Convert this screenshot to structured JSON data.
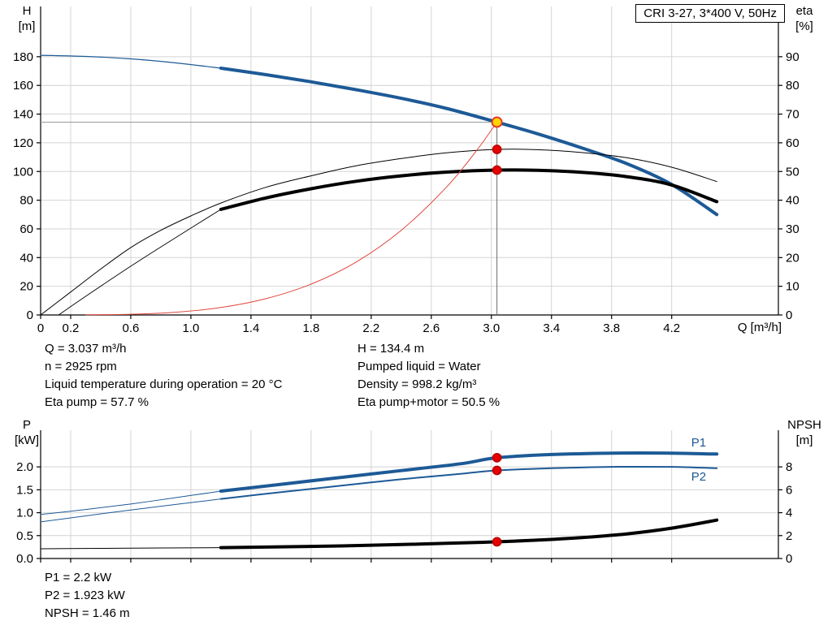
{
  "title_box": "CRI 3-27, 3*400 V, 50Hz",
  "colors": {
    "curve_blue": "#1d5a96",
    "curve_black": "#000000",
    "system_red": "#e0463c",
    "duty_dot_red": "#e60000",
    "duty_point_yellow": "#ffd400",
    "grid_gray": "#d4d4d4"
  },
  "info": {
    "left": [
      "Q = 3.037 m³/h",
      "n = 2925 rpm",
      "Liquid temperature during operation = 20 °C",
      "Eta pump = 57.7 %"
    ],
    "right": [
      "H = 134.4 m",
      "Pumped liquid = Water",
      "Density = 998.2 kg/m³",
      "Eta pump+motor = 50.5 %"
    ],
    "power": [
      "P1 = 2.2 kW",
      "P2 = 1.923 kW",
      "NPSH = 1.46 m"
    ]
  },
  "chart_data": [
    {
      "id": "qh-eta-chart",
      "type": "line",
      "title": "CRI 3-27, 3*400 V, 50Hz",
      "x_axis": {
        "label": "Q [m³/h]",
        "min": 0,
        "max": 4.91,
        "tick_values": [
          0,
          0.2,
          0.6,
          1.0,
          1.4,
          1.8,
          2.2,
          2.6,
          3.0,
          3.4,
          3.8,
          4.2
        ],
        "tick_labels": [
          "0",
          "0.2",
          "0.6",
          "1.0",
          "1.4",
          "1.8",
          "2.2",
          "2.6",
          "3.0",
          "3.4",
          "3.8",
          "4.2"
        ]
      },
      "y_left": {
        "label_lines": [
          "H",
          "[m]"
        ],
        "min": 0,
        "max": 215,
        "tick_values": [
          0,
          20,
          40,
          60,
          80,
          100,
          120,
          140,
          160,
          180
        ],
        "tick_labels": [
          "0",
          "20",
          "40",
          "60",
          "80",
          "100",
          "120",
          "140",
          "160",
          "180"
        ]
      },
      "y_right": {
        "label_lines": [
          "eta",
          "[%]"
        ],
        "min": 0,
        "max": 107.5,
        "tick_values": [
          0,
          10,
          20,
          30,
          40,
          50,
          60,
          70,
          80,
          90
        ],
        "tick_labels": [
          "0",
          "10",
          "20",
          "30",
          "40",
          "50",
          "60",
          "70",
          "80",
          "90"
        ]
      },
      "series": [
        {
          "name": "qh-curve-thin",
          "axis": "left",
          "color": "#1d5a96",
          "width": 1.2,
          "points": [
            [
              0,
              181
            ],
            [
              0.3,
              180.2
            ],
            [
              0.6,
              178.5
            ],
            [
              0.9,
              175.7
            ],
            [
              1.2,
              172
            ]
          ]
        },
        {
          "name": "qh-curve",
          "axis": "left",
          "color": "#1d5a96",
          "width": 4,
          "points": [
            [
              1.2,
              172
            ],
            [
              1.5,
              167.5
            ],
            [
              1.8,
              162.5
            ],
            [
              2.1,
              157
            ],
            [
              2.4,
              151
            ],
            [
              2.7,
              144
            ],
            [
              3.037,
              134.4
            ],
            [
              3.3,
              126.5
            ],
            [
              3.6,
              116.5
            ],
            [
              3.9,
              105.5
            ],
            [
              4.2,
              91
            ],
            [
              4.5,
              70
            ]
          ]
        },
        {
          "name": "eta-pump-curve",
          "axis": "right",
          "color": "#000000",
          "width": 1,
          "points": [
            [
              0,
              0
            ],
            [
              0.2,
              8
            ],
            [
              0.4,
              16
            ],
            [
              0.6,
              23.5
            ],
            [
              0.8,
              29.5
            ],
            [
              1.0,
              34.5
            ],
            [
              1.2,
              39
            ],
            [
              1.5,
              44.5
            ],
            [
              1.8,
              48.5
            ],
            [
              2.1,
              52
            ],
            [
              2.4,
              54.5
            ],
            [
              2.7,
              56.5
            ],
            [
              3.037,
              57.7
            ],
            [
              3.3,
              57.6
            ],
            [
              3.6,
              56.6
            ],
            [
              3.9,
              54.8
            ],
            [
              4.2,
              51.5
            ],
            [
              4.5,
              46.5
            ]
          ]
        },
        {
          "name": "eta-total-curve-thin",
          "axis": "right",
          "color": "#000000",
          "width": 0.9,
          "points": [
            [
              0.12,
              0
            ],
            [
              0.3,
              6.5
            ],
            [
              0.6,
              17
            ],
            [
              0.9,
              27
            ],
            [
              1.2,
              36.8
            ]
          ]
        },
        {
          "name": "eta-total-curve",
          "axis": "right",
          "color": "#000000",
          "width": 4,
          "points": [
            [
              1.2,
              36.8
            ],
            [
              1.5,
              40.8
            ],
            [
              1.8,
              44
            ],
            [
              2.1,
              46.6
            ],
            [
              2.4,
              48.5
            ],
            [
              2.7,
              49.8
            ],
            [
              3.037,
              50.5
            ],
            [
              3.3,
              50.4
            ],
            [
              3.6,
              49.7
            ],
            [
              3.9,
              48.2
            ],
            [
              4.2,
              45.3
            ],
            [
              4.5,
              39.5
            ]
          ]
        },
        {
          "name": "duty-system-curve",
          "axis": "left",
          "color": "#e0463c",
          "width": 1,
          "points": [
            [
              0.3,
              0.1
            ],
            [
              0.6,
              0.5
            ],
            [
              0.9,
              1.9
            ],
            [
              1.2,
              5.2
            ],
            [
              1.5,
              11.4
            ],
            [
              1.8,
              21.5
            ],
            [
              2.1,
              36.9
            ],
            [
              2.4,
              59
            ],
            [
              2.7,
              89
            ],
            [
              2.9,
              114.4
            ],
            [
              3.037,
              134.4
            ]
          ]
        }
      ],
      "crosshair": {
        "x": 3.037,
        "y": 134.4
      },
      "markers": [
        {
          "name": "duty-point-marker",
          "x": 3.037,
          "y": 134.4,
          "axis": "left",
          "r": 6,
          "fill": "#ffd400",
          "stroke": "#e8312a",
          "interactable": true
        },
        {
          "name": "eta-pump-duty-dot",
          "x": 3.037,
          "y": 57.7,
          "axis": "right",
          "r": 5,
          "fill": "#e60000",
          "stroke": "#c00000"
        },
        {
          "name": "eta-total-duty-dot",
          "x": 3.037,
          "y": 50.5,
          "axis": "right",
          "r": 5,
          "fill": "#e60000",
          "stroke": "#c00000"
        }
      ],
      "annotations": []
    },
    {
      "id": "power-npsh-chart",
      "type": "line",
      "title": "",
      "x_axis": {
        "label": "",
        "min": 0,
        "max": 4.91,
        "tick_values": [
          0,
          0.2,
          0.6,
          1.0,
          1.4,
          1.8,
          2.2,
          2.6,
          3.0,
          3.4,
          3.8,
          4.2
        ],
        "tick_labels": []
      },
      "y_left": {
        "label_lines": [
          "P",
          "[kW]"
        ],
        "min": 0,
        "max": 2.8,
        "tick_values": [
          0,
          0.5,
          1.0,
          1.5,
          2.0
        ],
        "tick_labels": [
          "0.0",
          "0.5",
          "1.0",
          "1.5",
          "2.0"
        ]
      },
      "y_right": {
        "label_lines": [
          "NPSH",
          "[m]"
        ],
        "min": 0,
        "max": 11.2,
        "tick_values": [
          0,
          2,
          4,
          6,
          8
        ],
        "tick_labels": [
          "0",
          "2",
          "4",
          "6",
          "8"
        ]
      },
      "series": [
        {
          "name": "p1-curve-thin",
          "axis": "left",
          "color": "#1d5a96",
          "width": 1,
          "points": [
            [
              0,
              0.96
            ],
            [
              0.3,
              1.07
            ],
            [
              0.6,
              1.19
            ],
            [
              0.9,
              1.33
            ],
            [
              1.2,
              1.47
            ]
          ]
        },
        {
          "name": "p1-curve",
          "axis": "left",
          "color": "#1d5a96",
          "width": 4,
          "points": [
            [
              1.2,
              1.47
            ],
            [
              1.6,
              1.62
            ],
            [
              2.0,
              1.77
            ],
            [
              2.4,
              1.92
            ],
            [
              2.8,
              2.07
            ],
            [
              3.037,
              2.2
            ],
            [
              3.4,
              2.27
            ],
            [
              3.8,
              2.3
            ],
            [
              4.2,
              2.3
            ],
            [
              4.5,
              2.28
            ]
          ]
        },
        {
          "name": "p2-curve-thin",
          "axis": "left",
          "color": "#1d5a96",
          "width": 1,
          "points": [
            [
              0,
              0.8
            ],
            [
              0.3,
              0.93
            ],
            [
              0.6,
              1.06
            ],
            [
              0.9,
              1.18
            ],
            [
              1.2,
              1.3
            ]
          ]
        },
        {
          "name": "p2-curve",
          "axis": "left",
          "color": "#1d5a96",
          "width": 2,
          "points": [
            [
              1.2,
              1.3
            ],
            [
              1.6,
              1.45
            ],
            [
              2.0,
              1.59
            ],
            [
              2.4,
              1.73
            ],
            [
              2.8,
              1.85
            ],
            [
              3.037,
              1.923
            ],
            [
              3.4,
              1.97
            ],
            [
              3.8,
              2.0
            ],
            [
              4.2,
              2.0
            ],
            [
              4.5,
              1.97
            ]
          ]
        },
        {
          "name": "npsh-curve-thin",
          "axis": "right",
          "color": "#000000",
          "width": 1,
          "points": [
            [
              0,
              0.85
            ],
            [
              0.6,
              0.9
            ],
            [
              1.2,
              0.95
            ]
          ]
        },
        {
          "name": "npsh-curve",
          "axis": "right",
          "color": "#000000",
          "width": 4,
          "points": [
            [
              1.2,
              0.95
            ],
            [
              1.6,
              1.02
            ],
            [
              2.0,
              1.1
            ],
            [
              2.4,
              1.22
            ],
            [
              2.8,
              1.36
            ],
            [
              3.037,
              1.46
            ],
            [
              3.3,
              1.6
            ],
            [
              3.6,
              1.82
            ],
            [
              3.9,
              2.15
            ],
            [
              4.2,
              2.65
            ],
            [
              4.5,
              3.35
            ]
          ]
        }
      ],
      "markers": [
        {
          "name": "p1-duty-dot",
          "x": 3.037,
          "y": 2.2,
          "axis": "left",
          "r": 5,
          "fill": "#e60000",
          "stroke": "#c00000"
        },
        {
          "name": "p2-duty-dot",
          "x": 3.037,
          "y": 1.923,
          "axis": "left",
          "r": 5,
          "fill": "#e60000",
          "stroke": "#c00000"
        },
        {
          "name": "npsh-duty-dot",
          "x": 3.037,
          "y": 1.46,
          "axis": "right",
          "r": 5,
          "fill": "#e60000",
          "stroke": "#c00000"
        }
      ],
      "annotations": [
        {
          "text": "P1",
          "x": 4.33,
          "y": 2.45,
          "axis": "left",
          "color": "#1d5a96"
        },
        {
          "text": "P2",
          "x": 4.33,
          "y": 1.7,
          "axis": "left",
          "color": "#1d5a96"
        }
      ]
    }
  ]
}
